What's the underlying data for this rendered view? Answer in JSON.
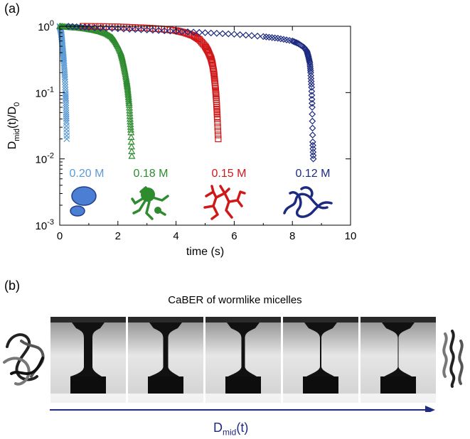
{
  "panel_a_label": "(a)",
  "panel_b_label": "(b)",
  "colors": {
    "c020": "#5b9bd5",
    "c018": "#2e8b2e",
    "c015": "#d01818",
    "c012": "#1c2a80"
  },
  "chart_data": {
    "type": "scatter",
    "xlabel": "time (s)",
    "ylabel": "D_mid(t)/D_0",
    "x_scale": "linear",
    "y_scale": "log",
    "xlim": [
      0,
      10
    ],
    "ylim": [
      0.001,
      1
    ],
    "x_ticks": [
      "0",
      "2",
      "4",
      "6",
      "8",
      "10"
    ],
    "y_ticks": [
      "10^0",
      "10^-1",
      "10^-2",
      "10^-3"
    ],
    "grid": false,
    "series": [
      {
        "name": "0.20 M",
        "marker": "cross",
        "color": "#5b9bd5",
        "icon": "spherical-micelles",
        "x": [
          0.0,
          0.02,
          0.04,
          0.06,
          0.08,
          0.1,
          0.12,
          0.14,
          0.16,
          0.18,
          0.2,
          0.21,
          0.22,
          0.23,
          0.24
        ],
        "y": [
          1.0,
          0.95,
          0.85,
          0.72,
          0.6,
          0.48,
          0.38,
          0.3,
          0.22,
          0.16,
          0.1,
          0.075,
          0.05,
          0.035,
          0.02
        ]
      },
      {
        "name": "0.18 M",
        "marker": "triangle",
        "color": "#2e8b2e",
        "icon": "branched-micelles",
        "x": [
          0.0,
          0.2,
          0.4,
          0.6,
          0.8,
          1.0,
          1.2,
          1.4,
          1.6,
          1.8,
          1.9,
          2.0,
          2.1,
          2.15,
          2.2,
          2.25,
          2.3,
          2.33,
          2.36,
          2.39,
          2.42,
          2.45,
          2.48
        ],
        "y": [
          1.0,
          0.98,
          0.96,
          0.95,
          0.93,
          0.9,
          0.87,
          0.83,
          0.77,
          0.68,
          0.6,
          0.5,
          0.4,
          0.33,
          0.26,
          0.2,
          0.15,
          0.12,
          0.09,
          0.065,
          0.04,
          0.025,
          0.011
        ]
      },
      {
        "name": "0.15 M",
        "marker": "square",
        "color": "#d01818",
        "icon": "wormlike-network",
        "x": [
          0.8,
          1.5,
          2.0,
          2.5,
          3.0,
          3.5,
          4.0,
          4.3,
          4.6,
          4.8,
          5.0,
          5.1,
          5.2,
          5.25,
          5.3,
          5.33,
          5.36,
          5.38,
          5.4,
          5.42,
          5.45
        ],
        "y": [
          1.0,
          0.99,
          0.98,
          0.96,
          0.94,
          0.91,
          0.86,
          0.8,
          0.72,
          0.63,
          0.5,
          0.42,
          0.33,
          0.27,
          0.2,
          0.15,
          0.11,
          0.085,
          0.06,
          0.04,
          0.02
        ]
      },
      {
        "name": "0.12 M",
        "marker": "diamond",
        "color": "#1c2a80",
        "icon": "entangled-wormlike",
        "x": [
          0.3,
          1.0,
          2.0,
          3.0,
          4.0,
          5.0,
          6.0,
          7.0,
          7.5,
          8.0,
          8.2,
          8.4,
          8.5,
          8.55,
          8.6,
          8.63,
          8.66,
          8.68,
          8.7,
          8.72
        ],
        "y": [
          1.0,
          0.96,
          0.92,
          0.88,
          0.84,
          0.8,
          0.76,
          0.7,
          0.66,
          0.6,
          0.55,
          0.48,
          0.42,
          0.35,
          0.28,
          0.2,
          0.12,
          0.06,
          0.018,
          0.01
        ]
      }
    ]
  },
  "panel_b": {
    "caption": "CaBER of wormlike micelles",
    "frames": [
      {
        "neck_fraction": 0.2
      },
      {
        "neck_fraction": 0.12
      },
      {
        "neck_fraction": 0.08
      },
      {
        "neck_fraction": 0.03
      },
      {
        "neck_fraction": 0.015
      }
    ],
    "arrow_label_main": "D",
    "arrow_label_sub": "mid",
    "arrow_label_tail": "(t)",
    "left_icon": "entangled-chains-icon",
    "right_icon": "aligned-chains-icon"
  }
}
